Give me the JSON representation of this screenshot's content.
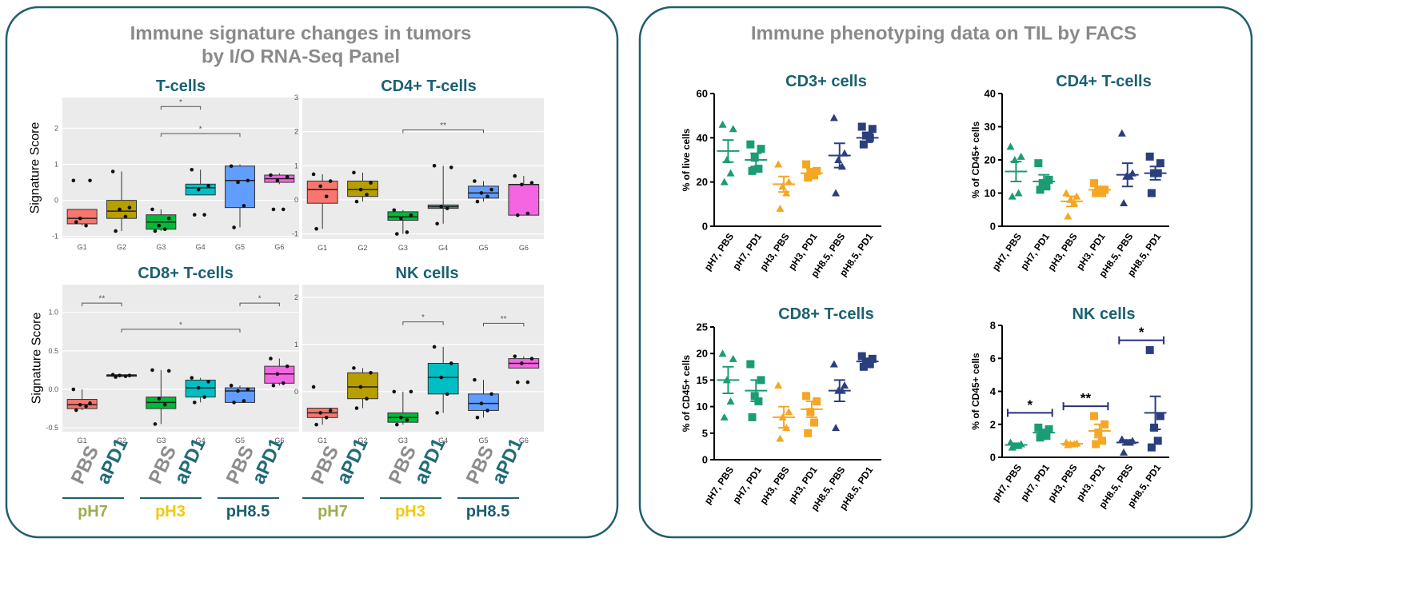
{
  "panels": [
    {
      "title": [
        "Immune signature changes in tumors",
        "by I/O RNA-Seq Panel"
      ]
    },
    {
      "title": [
        "Immune phenotyping data on TIL by FACS"
      ]
    }
  ],
  "treatment_groups": [
    [
      {
        "ph": "pH7",
        "treatments": [
          "PBS",
          "aPD1"
        ]
      },
      {
        "ph": "pH3",
        "treatments": [
          "PBS",
          "aPD1"
        ]
      },
      {
        "ph": "pH8.5",
        "treatments": [
          "PBS",
          "aPD1"
        ]
      }
    ],
    [
      {
        "ph": "pH7",
        "treatments": [
          "PBS",
          "aPD1"
        ]
      },
      {
        "ph": "pH3",
        "treatments": [
          "PBS",
          "aPD1"
        ]
      },
      {
        "ph": "pH8.5",
        "treatments": [
          "PBS",
          "aPD1"
        ]
      }
    ]
  ],
  "treatment_colors": [
    "#8c8c8c",
    "#1f6b78"
  ],
  "ph_colors": [
    "#9aae4f",
    "#f2c80f",
    "#1d5f6e"
  ],
  "chart_data": [
    {
      "type": "box",
      "title": "T-cells",
      "y_label": "Signature Score",
      "categories": [
        "G1",
        "G2",
        "G3",
        "G4",
        "G5",
        "G6"
      ],
      "colors": [
        "#f8766d",
        "#b79f00",
        "#00ba38",
        "#00bfc4",
        "#619cff",
        "#f564e3"
      ],
      "ylim": [
        -1.05,
        2.85
      ],
      "yticks": [
        -1,
        0,
        1,
        2
      ],
      "grid": true,
      "boxes": [
        {
          "q1": -0.65,
          "median": -0.5,
          "q3": -0.25,
          "whisker_low": -0.7,
          "whisker_high": -0.25,
          "points": [
            0.55,
            0.55,
            -0.5,
            -0.7,
            -0.6
          ]
        },
        {
          "q1": -0.5,
          "median": -0.3,
          "q3": 0.0,
          "whisker_low": -0.85,
          "whisker_high": 0.8,
          "points": [
            0.8,
            -0.2,
            -0.25,
            -0.45,
            -0.85
          ]
        },
        {
          "q1": -0.8,
          "median": -0.6,
          "q3": -0.4,
          "whisker_low": -0.85,
          "whisker_high": -0.25,
          "points": [
            -0.25,
            -0.5,
            -0.7,
            -0.8,
            -0.85
          ]
        },
        {
          "q1": 0.15,
          "median": 0.35,
          "q3": 0.45,
          "whisker_low": 0.15,
          "whisker_high": 0.85,
          "points": [
            0.85,
            0.4,
            0.3,
            -0.4,
            -0.4
          ]
        },
        {
          "q1": -0.2,
          "median": 0.55,
          "q3": 0.95,
          "whisker_low": -0.75,
          "whisker_high": 1.0,
          "points": [
            0.95,
            0.55,
            0.5,
            -0.15,
            -0.75
          ]
        },
        {
          "q1": 0.5,
          "median": 0.6,
          "q3": 0.7,
          "whisker_low": 0.45,
          "whisker_high": 0.75,
          "points": [
            0.7,
            0.65,
            0.55,
            -0.25,
            -0.25
          ]
        }
      ],
      "brackets": [
        {
          "from": "G3",
          "to": "G4",
          "y": 2.6,
          "label": "*"
        },
        {
          "from": "G3",
          "to": "G5",
          "y": 1.85,
          "label": "*"
        }
      ]
    },
    {
      "type": "box",
      "title": "CD4+ T-cells",
      "categories": [
        "G1",
        "G2",
        "G3",
        "G4",
        "G5",
        "G6"
      ],
      "colors": [
        "#f8766d",
        "#b79f00",
        "#00ba38",
        "#00bfc4",
        "#619cff",
        "#f564e3"
      ],
      "ylim": [
        -1.15,
        3.0
      ],
      "yticks": [
        -1,
        0,
        1,
        2,
        3
      ],
      "grid": true,
      "boxes": [
        {
          "q1": -0.1,
          "median": 0.3,
          "q3": 0.55,
          "whisker_low": -0.85,
          "whisker_high": 0.75,
          "points": [
            0.75,
            0.55,
            0.4,
            0.1,
            -0.85
          ]
        },
        {
          "q1": 0.1,
          "median": 0.3,
          "q3": 0.55,
          "whisker_low": -0.05,
          "whisker_high": 0.8,
          "points": [
            0.8,
            0.5,
            0.3,
            0.15,
            -0.05
          ]
        },
        {
          "q1": -0.6,
          "median": -0.5,
          "q3": -0.35,
          "whisker_low": -1.0,
          "whisker_high": -0.3,
          "points": [
            -0.3,
            -0.45,
            -0.55,
            -0.95,
            -1.0
          ]
        },
        {
          "q1": -0.25,
          "median": -0.2,
          "q3": -0.15,
          "whisker_low": -0.7,
          "whisker_high": 1.0,
          "points": [
            1.0,
            0.95,
            -0.2,
            -0.25,
            -0.7
          ]
        },
        {
          "q1": 0.05,
          "median": 0.2,
          "q3": 0.4,
          "whisker_low": -0.05,
          "whisker_high": 0.55,
          "points": [
            0.55,
            0.3,
            0.2,
            0.1,
            -0.05
          ]
        },
        {
          "q1": -0.45,
          "median": 0.45,
          "q3": 0.45,
          "whisker_low": -0.45,
          "whisker_high": 0.7,
          "points": [
            0.7,
            0.5,
            0.45,
            -0.4,
            -0.45
          ]
        }
      ],
      "brackets": [
        {
          "from": "G3",
          "to": "G5",
          "y": 2.05,
          "label": "**"
        }
      ]
    },
    {
      "type": "box",
      "title": "CD8+ T-cells",
      "y_label": "Signature Score",
      "categories": [
        "G1",
        "G2",
        "G3",
        "G4",
        "G5",
        "G6"
      ],
      "colors": [
        "#f8766d",
        "#b79f00",
        "#00ba38",
        "#00bfc4",
        "#619cff",
        "#f564e3"
      ],
      "ylim": [
        -0.55,
        1.36
      ],
      "yticks": [
        -0.5,
        {
          "value": 0,
          "label": "0.0"
        },
        0.5,
        {
          "value": 1,
          "label": "1.0"
        }
      ],
      "grid": true,
      "boxes": [
        {
          "q1": -0.25,
          "median": -0.2,
          "q3": -0.13,
          "whisker_low": -0.27,
          "whisker_high": 0.0,
          "points": [
            0.0,
            -0.18,
            -0.2,
            -0.22,
            -0.27
          ]
        },
        {
          "q1": 0.17,
          "median": 0.18,
          "q3": 0.19,
          "whisker_low": 0.16,
          "whisker_high": 0.19,
          "points": [
            0.19,
            0.18,
            0.18,
            0.17,
            0.16
          ]
        },
        {
          "q1": -0.25,
          "median": -0.17,
          "q3": -0.1,
          "whisker_low": -0.45,
          "whisker_high": 0.25,
          "points": [
            0.25,
            0.24,
            -0.12,
            -0.2,
            -0.45
          ]
        },
        {
          "q1": -0.1,
          "median": 0.02,
          "q3": 0.12,
          "whisker_low": -0.17,
          "whisker_high": 0.15,
          "points": [
            0.15,
            0.1,
            0.02,
            -0.1,
            -0.17
          ]
        },
        {
          "q1": -0.17,
          "median": -0.02,
          "q3": 0.02,
          "whisker_low": -0.17,
          "whisker_high": 0.05,
          "points": [
            0.05,
            0.0,
            -0.02,
            -0.15,
            -0.17
          ]
        },
        {
          "q1": 0.08,
          "median": 0.2,
          "q3": 0.3,
          "whisker_low": 0.05,
          "whisker_high": 0.4,
          "points": [
            0.4,
            0.3,
            0.2,
            0.08,
            0.05
          ]
        }
      ],
      "brackets": [
        {
          "from": "G1",
          "to": "G2",
          "y": 1.12,
          "label": "**"
        },
        {
          "from": "G2",
          "to": "G5",
          "y": 0.78,
          "label": "*"
        },
        {
          "from": "G5",
          "to": "G6",
          "y": 1.12,
          "label": "*"
        }
      ]
    },
    {
      "type": "box",
      "title": "NK cells",
      "categories": [
        "G1",
        "G2",
        "G3",
        "G4",
        "G5",
        "G6"
      ],
      "colors": [
        "#f8766d",
        "#b79f00",
        "#00ba38",
        "#00bfc4",
        "#619cff",
        "#f564e3"
      ],
      "ylim": [
        -0.85,
        2.27
      ],
      "yticks": [
        0,
        1,
        2
      ],
      "grid": true,
      "boxes": [
        {
          "q1": -0.55,
          "median": -0.45,
          "q3": -0.35,
          "whisker_low": -0.7,
          "whisker_high": -0.35,
          "points": [
            0.1,
            -0.4,
            -0.45,
            -0.55,
            -0.7
          ]
        },
        {
          "q1": -0.15,
          "median": 0.1,
          "q3": 0.4,
          "whisker_low": -0.35,
          "whisker_high": 0.5,
          "points": [
            0.5,
            0.4,
            0.1,
            -0.15,
            -0.35
          ]
        },
        {
          "q1": -0.65,
          "median": -0.55,
          "q3": -0.45,
          "whisker_low": -0.7,
          "whisker_high": 0.0,
          "points": [
            0.0,
            0.0,
            -0.55,
            -0.6,
            -0.7
          ]
        },
        {
          "q1": -0.05,
          "median": 0.3,
          "q3": 0.6,
          "whisker_low": -0.45,
          "whisker_high": 0.95,
          "points": [
            0.95,
            0.6,
            0.3,
            -0.05,
            -0.45
          ]
        },
        {
          "q1": -0.4,
          "median": -0.25,
          "q3": -0.05,
          "whisker_low": -0.55,
          "whisker_high": 0.25,
          "points": [
            0.25,
            -0.05,
            -0.25,
            -0.4,
            -0.55
          ]
        },
        {
          "q1": 0.5,
          "median": 0.6,
          "q3": 0.7,
          "whisker_low": 0.5,
          "whisker_high": 0.75,
          "points": [
            0.75,
            0.7,
            0.6,
            0.2,
            0.2
          ]
        }
      ],
      "brackets": [
        {
          "from": "G3",
          "to": "G4",
          "y": 1.48,
          "label": "*"
        },
        {
          "from": "G5",
          "to": "G6",
          "y": 1.45,
          "label": "**"
        }
      ]
    },
    {
      "type": "dot",
      "title": "CD3+ cells",
      "y_label": "% of live cells",
      "categories": [
        "pH7, PBS",
        "pH7, PD1",
        "pH3, PBS",
        "pH3, PD1",
        "pH8.5, PBS",
        "pH8.5, PD1"
      ],
      "colors": [
        "#1a9c74",
        "#1a9c74",
        "#f5a623",
        "#f5a623",
        "#2b3f7e",
        "#2b3f7e"
      ],
      "markers": [
        "triangle",
        "square",
        "triangle",
        "square",
        "triangle",
        "square"
      ],
      "ylim": [
        0,
        60
      ],
      "yticks": [
        0,
        20,
        40,
        60
      ],
      "groups": [
        {
          "values": [
            46,
            44,
            30,
            24,
            20
          ],
          "mean": 34,
          "sem": 5
        },
        {
          "values": [
            37,
            35,
            31,
            26,
            25
          ],
          "mean": 30,
          "sem": 3
        },
        {
          "values": [
            28,
            20,
            18,
            15,
            8
          ],
          "mean": 19,
          "sem": 3.5
        },
        {
          "values": [
            28,
            25,
            24,
            23,
            22
          ],
          "mean": 24,
          "sem": 2
        },
        {
          "values": [
            49,
            33,
            30,
            27,
            15
          ],
          "mean": 32,
          "sem": 5.5
        },
        {
          "values": [
            45,
            44,
            41,
            40,
            37
          ],
          "mean": 40,
          "sem": 2
        }
      ]
    },
    {
      "type": "dot",
      "title": "CD4+ T-cells",
      "y_label": "% of CD45+ cells",
      "categories": [
        "pH7, PBS",
        "pH7, PD1",
        "pH3, PBS",
        "pH3, PD1",
        "pH8.5, PBS",
        "pH8.5, PD1"
      ],
      "colors": [
        "#1a9c74",
        "#1a9c74",
        "#f5a623",
        "#f5a623",
        "#2b3f7e",
        "#2b3f7e"
      ],
      "markers": [
        "triangle",
        "square",
        "triangle",
        "square",
        "triangle",
        "square"
      ],
      "ylim": [
        0,
        40
      ],
      "yticks": [
        0,
        10,
        20,
        30,
        40
      ],
      "groups": [
        {
          "values": [
            24,
            21,
            20,
            10,
            9
          ],
          "mean": 16.5,
          "sem": 3
        },
        {
          "values": [
            19,
            14,
            13,
            12,
            11
          ],
          "mean": 13.5,
          "sem": 2
        },
        {
          "values": [
            10,
            9,
            8,
            7,
            3
          ],
          "mean": 7.5,
          "sem": 1.5
        },
        {
          "values": [
            13,
            11,
            11,
            10,
            10
          ],
          "mean": 11,
          "sem": 1
        },
        {
          "values": [
            28,
            16,
            15,
            15,
            7
          ],
          "mean": 15.5,
          "sem": 3.5
        },
        {
          "values": [
            21,
            19,
            16,
            16,
            10
          ],
          "mean": 16,
          "sem": 2
        }
      ]
    },
    {
      "type": "dot",
      "title": "CD8+ T-cells",
      "y_label": "% of CD45+ cells",
      "categories": [
        "pH7, PBS",
        "pH7, PD1",
        "pH3, PBS",
        "pH3, PD1",
        "pH8.5, PBS",
        "pH8.5, PD1"
      ],
      "colors": [
        "#1a9c74",
        "#1a9c74",
        "#f5a623",
        "#f5a623",
        "#2b3f7e",
        "#2b3f7e"
      ],
      "markers": [
        "triangle",
        "square",
        "triangle",
        "square",
        "triangle",
        "square"
      ],
      "ylim": [
        0,
        25
      ],
      "yticks": [
        0,
        5,
        10,
        15,
        20,
        25
      ],
      "groups": [
        {
          "values": [
            20,
            19,
            15,
            11,
            8
          ],
          "mean": 15,
          "sem": 2.5
        },
        {
          "values": [
            18,
            15,
            12,
            11,
            8
          ],
          "mean": 13,
          "sem": 2
        },
        {
          "values": [
            14,
            9,
            8,
            6,
            4
          ],
          "mean": 8,
          "sem": 2
        },
        {
          "values": [
            12,
            11,
            9,
            7,
            5
          ],
          "mean": 9.5,
          "sem": 1.5
        },
        {
          "values": [
            18,
            14,
            13,
            13,
            6
          ],
          "mean": 13,
          "sem": 2
        },
        {
          "values": [
            19.5,
            19,
            18.5,
            18,
            17.5
          ],
          "mean": 18.5,
          "sem": 0.5
        }
      ]
    },
    {
      "type": "dot",
      "title": "NK cells",
      "y_label": "% of CD45+ cells",
      "categories": [
        "pH7, PBS",
        "pH7, PD1",
        "pH3, PBS",
        "pH3, PD1",
        "pH8.5, PBS",
        "pH8.5, PD1"
      ],
      "colors": [
        "#1a9c74",
        "#1a9c74",
        "#f5a623",
        "#f5a623",
        "#2b3f7e",
        "#2b3f7e"
      ],
      "markers": [
        "triangle",
        "square",
        "triangle",
        "square",
        "triangle",
        "square"
      ],
      "ylim": [
        0,
        8
      ],
      "yticks": [
        0,
        2,
        4,
        6,
        8
      ],
      "groups": [
        {
          "values": [
            0.9,
            0.8,
            0.7,
            0.7,
            0.6
          ],
          "mean": 0.75,
          "sem": 0.1
        },
        {
          "values": [
            1.8,
            1.7,
            1.5,
            1.3,
            1.2
          ],
          "mean": 1.5,
          "sem": 0.15
        },
        {
          "values": [
            0.9,
            0.85,
            0.8,
            0.8,
            0.75
          ],
          "mean": 0.82,
          "sem": 0.05
        },
        {
          "values": [
            2.5,
            2.0,
            1.5,
            1.0,
            0.8
          ],
          "mean": 1.6,
          "sem": 0.4
        },
        {
          "values": [
            1.1,
            1.0,
            0.9,
            0.9,
            0.3
          ],
          "mean": 0.9,
          "sem": 0.15
        },
        {
          "values": [
            6.5,
            2.5,
            1.8,
            1.0,
            0.6
          ],
          "mean": 2.7,
          "sem": 1.0
        }
      ],
      "brackets": [
        {
          "from": "pH7, PBS",
          "to": "pH7, PD1",
          "y": 2.7,
          "label": "*"
        },
        {
          "from": "pH3, PBS",
          "to": "pH3, PD1",
          "y": 3.1,
          "label": "**"
        },
        {
          "from": "pH8.5, PBS",
          "to": "pH8.5, PD1",
          "y": 7.1,
          "label": "*"
        }
      ]
    }
  ]
}
